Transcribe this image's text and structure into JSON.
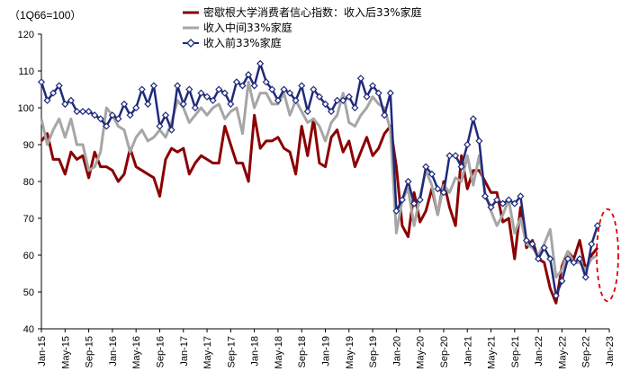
{
  "chart_data": {
    "type": "line",
    "unit_label": "（1Q66=100）",
    "ylim": [
      40,
      120
    ],
    "yticks": [
      40,
      50,
      60,
      70,
      80,
      90,
      100,
      110,
      120
    ],
    "xtick_labels": [
      "Jan-15",
      "May-15",
      "Sep-15",
      "Jan-16",
      "May-16",
      "Sep-16",
      "Jan-17",
      "May-17",
      "Sep-17",
      "Jan-18",
      "May-18",
      "Sep-18",
      "Jan-19",
      "May-19",
      "Sep-19",
      "Jan-20",
      "May-20",
      "Sep-20",
      "Jan-21",
      "May-21",
      "Sep-21",
      "Jan-22",
      "May-22",
      "Sep-22",
      "Jan-23"
    ],
    "x_start": "Jan-15",
    "x_end": "Jan-23",
    "grid": false,
    "legend_position": "top",
    "series": [
      {
        "name": "密歇根大学消费者信心指数：收入后33%家庭",
        "color": "#8B0000",
        "marker": "none",
        "values": [
          91,
          93,
          86,
          86,
          82,
          88,
          86,
          87,
          81,
          88,
          84,
          84,
          83,
          80,
          82,
          89,
          84,
          83,
          82,
          81,
          76,
          86,
          89,
          88,
          89,
          82,
          85,
          87,
          86,
          85,
          85,
          95,
          90,
          85,
          85,
          80,
          98,
          89,
          91,
          91,
          92,
          89,
          88,
          82,
          95,
          87,
          97,
          85,
          84,
          92,
          94,
          88,
          91,
          84,
          88,
          92,
          87,
          89,
          93,
          95,
          84,
          68,
          65,
          77,
          69,
          72,
          78,
          71,
          80,
          73,
          68,
          87,
          78,
          83,
          83,
          80,
          77,
          77,
          69,
          70,
          59,
          73,
          62,
          64,
          59,
          58,
          51,
          47,
          57,
          61,
          59,
          64,
          56,
          60,
          62
        ]
      },
      {
        "name": "收入中间33%家庭",
        "color": "#A6A6A6",
        "marker": "none",
        "values": [
          97,
          90,
          94,
          97,
          92,
          97,
          90,
          90,
          83,
          84,
          88,
          100,
          98,
          95,
          94,
          88,
          92,
          94,
          91,
          92,
          94,
          92,
          96,
          102,
          100,
          96,
          98,
          100,
          98,
          100,
          101,
          97,
          99,
          100,
          93,
          107,
          100,
          104,
          104,
          101,
          101,
          104,
          98,
          102,
          99,
          96,
          97,
          95,
          91,
          96,
          98,
          104,
          96,
          95,
          98,
          100,
          103,
          101,
          100,
          94,
          66,
          75,
          78,
          68,
          76,
          83,
          79,
          71,
          79,
          77,
          81,
          80,
          87,
          79,
          87,
          77,
          72,
          68,
          71,
          75,
          66,
          70,
          63,
          62,
          60,
          63,
          67,
          54,
          56,
          61,
          58,
          58,
          56,
          59,
          60
        ]
      },
      {
        "name": "收入前33%家庭",
        "color": "#1F2A7A",
        "marker": "diamond-open",
        "values": [
          107,
          102,
          104,
          106,
          101,
          102,
          99,
          99,
          99,
          98,
          97,
          95,
          98,
          97,
          101,
          98,
          100,
          105,
          101,
          106,
          95,
          98,
          94,
          106,
          101,
          105,
          100,
          104,
          103,
          102,
          105,
          104,
          101,
          107,
          106,
          109,
          106,
          112,
          107,
          105,
          102,
          105,
          104,
          102,
          106,
          99,
          105,
          103,
          101,
          99,
          102,
          102,
          103,
          100,
          108,
          103,
          106,
          104,
          98,
          104,
          72,
          75,
          80,
          74,
          75,
          84,
          82,
          78,
          77,
          87,
          87,
          84,
          90,
          97,
          91,
          76,
          73,
          75,
          74,
          75,
          74,
          76,
          64,
          63,
          59,
          62,
          59,
          49,
          53,
          59,
          58,
          59,
          54,
          63,
          68
        ]
      }
    ]
  },
  "legend": {
    "items": [
      {
        "label": "密歇根大学消费者信心指数：收入后33%家庭"
      },
      {
        "label": "收入中间33%家庭"
      },
      {
        "label": "收入前33%家庭"
      }
    ]
  },
  "annotation": {
    "type": "dashed-ellipse",
    "color": "#E00000"
  }
}
